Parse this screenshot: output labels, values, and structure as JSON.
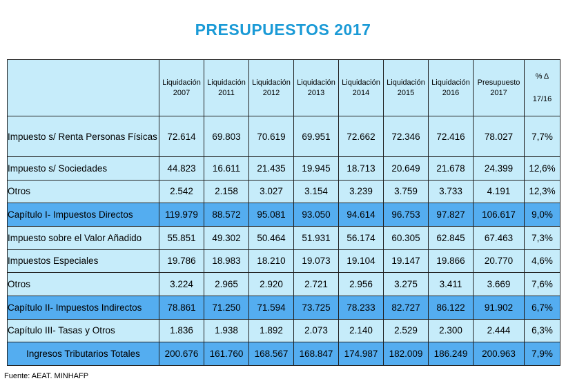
{
  "title": "PRESUPUESTOS 2017",
  "table": {
    "headers": [
      "Liquidación 2007",
      "Liquidación 2011",
      "Liquidación 2012",
      "Liquidación 2013",
      "Liquidación 2014",
      "Liquidación 2015",
      "Liquidación 2016",
      "Presupuesto 2017"
    ],
    "header_lines": [
      [
        "Liquidación",
        "2007"
      ],
      [
        "Liquidación",
        "2011"
      ],
      [
        "Liquidación",
        "2012"
      ],
      [
        "Liquidación",
        "2013"
      ],
      [
        "Liquidación",
        "2014"
      ],
      [
        "Liquidación",
        "2015"
      ],
      [
        "Liquidación",
        "2016"
      ],
      [
        "Presupuesto",
        "2017"
      ]
    ],
    "pct_header": [
      "% Δ",
      "17/16"
    ],
    "rows": [
      {
        "label": "Impuesto s/ Renta Personas Físicas",
        "values": [
          "72.614",
          "69.803",
          "70.619",
          "69.951",
          "72.662",
          "72.346",
          "72.416",
          "78.027"
        ],
        "pct": "7,7%"
      },
      {
        "label": "Impuesto s/ Sociedades",
        "values": [
          "44.823",
          "16.611",
          "21.435",
          "19.945",
          "18.713",
          "20.649",
          "21.678",
          "24.399"
        ],
        "pct": "12,6%"
      },
      {
        "label": "Otros",
        "values": [
          "2.542",
          "2.158",
          "3.027",
          "3.154",
          "3.239",
          "3.759",
          "3.733",
          "4.191"
        ],
        "pct": "12,3%"
      },
      {
        "label": "Capítulo I- Impuestos Directos",
        "values": [
          "119.979",
          "88.572",
          "95.081",
          "93.050",
          "94.614",
          "96.753",
          "97.827",
          "106.617"
        ],
        "pct": "9,0%"
      },
      {
        "label": "Impuesto sobre el Valor Añadido",
        "values": [
          "55.851",
          "49.302",
          "50.464",
          "51.931",
          "56.174",
          "60.305",
          "62.845",
          "67.463"
        ],
        "pct": "7,3%"
      },
      {
        "label": "Impuestos Especiales",
        "values": [
          "19.786",
          "18.983",
          "18.210",
          "19.073",
          "19.104",
          "19.147",
          "19.866",
          "20.770"
        ],
        "pct": "4,6%"
      },
      {
        "label": "Otros",
        "values": [
          "3.224",
          "2.965",
          "2.920",
          "2.721",
          "2.956",
          "3.275",
          "3.411",
          "3.669"
        ],
        "pct": "7,6%"
      },
      {
        "label": "Capítulo II- Impuestos Indirectos",
        "values": [
          "78.861",
          "71.250",
          "71.594",
          "73.725",
          "78.233",
          "82.727",
          "86.122",
          "91.902"
        ],
        "pct": "6,7%"
      },
      {
        "label": "Capítulo III- Tasas y Otros",
        "values": [
          "1.836",
          "1.938",
          "1.892",
          "2.073",
          "2.140",
          "2.529",
          "2.300",
          "2.444"
        ],
        "pct": "6,3%"
      },
      {
        "label": "Ingresos Tributarios Totales",
        "values": [
          "200.676",
          "161.760",
          "168.567",
          "168.847",
          "174.987",
          "182.009",
          "186.249",
          "200.963"
        ],
        "pct": "7,9%"
      }
    ],
    "row_styles": [
      "light",
      "light",
      "light",
      "dark",
      "light",
      "light",
      "light",
      "dark",
      "light",
      "dark total"
    ]
  },
  "colors": {
    "title": "#1a9ad6",
    "light_row": "#c6ecfa",
    "dark_row": "#54adf0"
  },
  "source": "Fuente: AEAT.  MINHAFP"
}
